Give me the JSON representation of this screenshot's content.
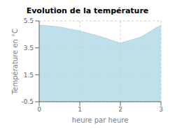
{
  "chart_data": {
    "type": "area",
    "title": "Evolution de la température",
    "xlabel": "heure par heure",
    "ylabel": "Température en °C",
    "x": [
      0,
      0.5,
      1,
      1.5,
      2,
      2.5,
      3
    ],
    "values": [
      5.2,
      5.05,
      4.75,
      4.35,
      3.85,
      4.3,
      5.2
    ],
    "color": "#add8e6",
    "xlim": [
      0,
      3
    ],
    "xticks": [
      0,
      1,
      2,
      3
    ],
    "ylim": [
      -0.5,
      5.5
    ],
    "yticks": [
      -0.5,
      1.5,
      3.5,
      5.5
    ],
    "grid": true
  }
}
